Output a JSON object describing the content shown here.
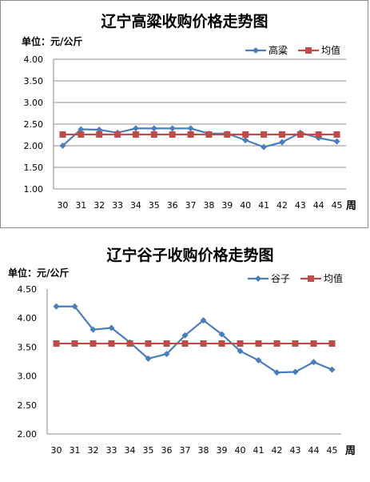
{
  "chart_data": [
    {
      "type": "line",
      "title": "辽宁高粱收购价格走势图",
      "unit_label": "单位：元/公斤",
      "xlabel": "周",
      "categories": [
        "30",
        "31",
        "32",
        "33",
        "34",
        "35",
        "36",
        "37",
        "38",
        "39",
        "40",
        "41",
        "42",
        "43",
        "44",
        "45"
      ],
      "yticks": [
        "4.00",
        "3.50",
        "3.00",
        "2.50",
        "2.00",
        "1.50",
        "1.00"
      ],
      "ylim": [
        1.0,
        4.0
      ],
      "grid": true,
      "legend_position": "top-right",
      "series": [
        {
          "name": "高粱",
          "color": "#4a7ebb",
          "marker": "diamond",
          "values": [
            2.0,
            2.38,
            2.37,
            2.3,
            2.4,
            2.4,
            2.4,
            2.4,
            2.28,
            2.28,
            2.13,
            1.97,
            2.08,
            2.3,
            2.18,
            2.1
          ]
        },
        {
          "name": "均值",
          "color": "#be4b48",
          "marker": "square",
          "values": [
            2.26,
            2.26,
            2.26,
            2.26,
            2.26,
            2.26,
            2.26,
            2.26,
            2.26,
            2.26,
            2.26,
            2.26,
            2.26,
            2.26,
            2.26,
            2.26
          ]
        }
      ]
    },
    {
      "type": "line",
      "title": "辽宁谷子收购价格走势图",
      "unit_label": "单位：元/公斤",
      "xlabel": "周",
      "categories": [
        "30",
        "31",
        "32",
        "33",
        "34",
        "35",
        "36",
        "37",
        "38",
        "39",
        "40",
        "41",
        "42",
        "43",
        "44",
        "45"
      ],
      "yticks": [
        "4.50",
        "4.00",
        "3.50",
        "3.00",
        "2.50",
        "2.00"
      ],
      "ylim": [
        2.0,
        4.5
      ],
      "grid": false,
      "legend_position": "top-right",
      "series": [
        {
          "name": "谷子",
          "color": "#4a7ebb",
          "marker": "diamond",
          "values": [
            4.2,
            4.2,
            3.8,
            3.83,
            3.58,
            3.3,
            3.38,
            3.7,
            3.96,
            3.72,
            3.43,
            3.27,
            3.06,
            3.07,
            3.24,
            3.11
          ]
        },
        {
          "name": "均值",
          "color": "#be4b48",
          "marker": "square",
          "values": [
            3.56,
            3.56,
            3.56,
            3.56,
            3.56,
            3.56,
            3.56,
            3.56,
            3.56,
            3.56,
            3.56,
            3.56,
            3.56,
            3.56,
            3.56,
            3.56
          ]
        }
      ]
    }
  ]
}
